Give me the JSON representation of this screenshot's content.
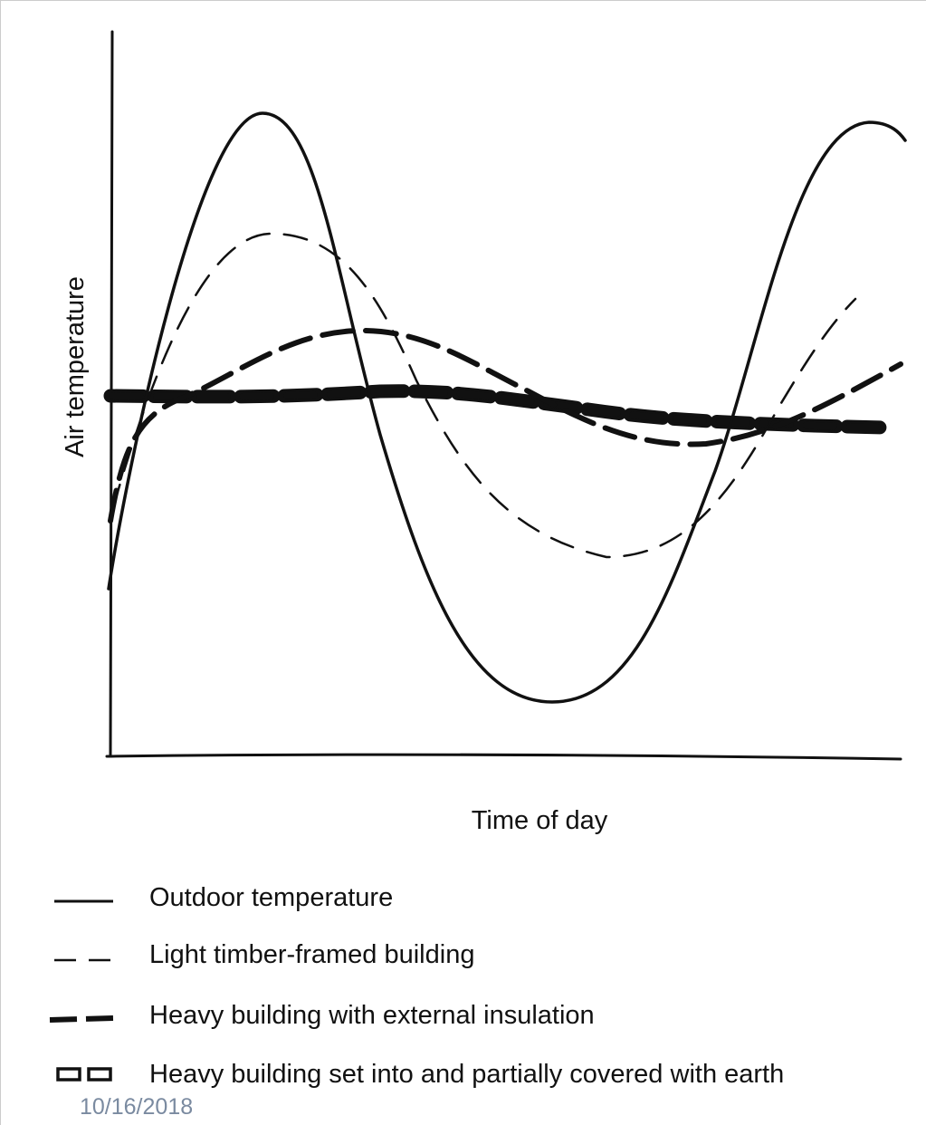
{
  "axes": {
    "y_label": "Air temperature",
    "x_label": "Time of day"
  },
  "legend": [
    {
      "label": "Outdoor temperature"
    },
    {
      "label": "Light timber-framed building"
    },
    {
      "label": "Heavy building with external insulation"
    },
    {
      "label": "Heavy building set into and partially covered with earth"
    }
  ],
  "footer": {
    "date": "10/16/2018"
  }
}
